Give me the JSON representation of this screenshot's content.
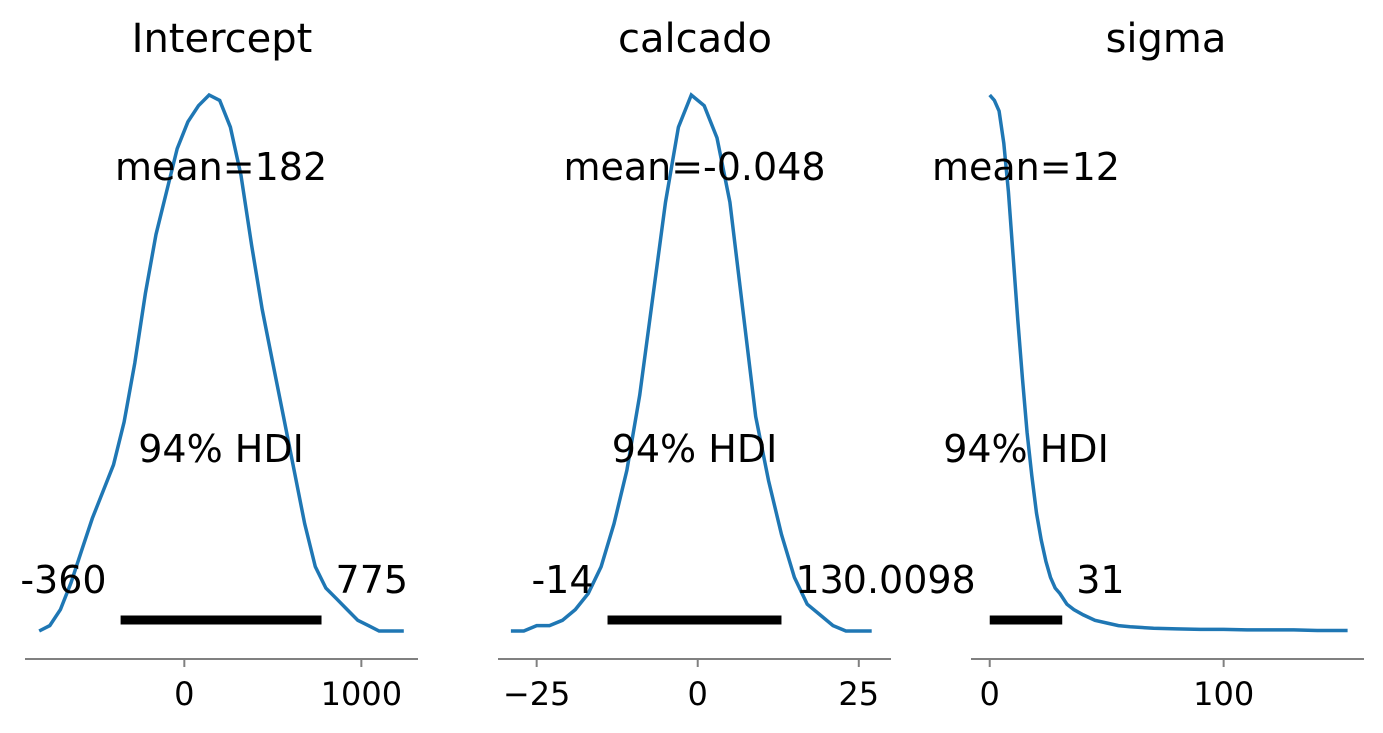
{
  "chart_data": [
    {
      "type": "area",
      "title": "Intercept",
      "mean_label": "mean=182",
      "hdi_label": "94% HDI",
      "hdi_low_label": "-360",
      "hdi_high_label": "775",
      "hdi": [
        -360,
        775
      ],
      "xlim": [
        -900,
        1320
      ],
      "xticks": [
        0,
        1000
      ],
      "xtick_labels": [
        "0",
        "1000"
      ],
      "line_color": "#1f77b4",
      "x": [
        -820,
        -760,
        -700,
        -640,
        -580,
        -520,
        -460,
        -400,
        -340,
        -280,
        -220,
        -160,
        -100,
        -40,
        20,
        80,
        140,
        200,
        260,
        320,
        380,
        440,
        500,
        560,
        620,
        680,
        740,
        800,
        860,
        920,
        980,
        1040,
        1100,
        1160,
        1240
      ],
      "density": [
        0.0,
        0.01,
        0.04,
        0.09,
        0.15,
        0.21,
        0.26,
        0.31,
        0.39,
        0.5,
        0.63,
        0.74,
        0.82,
        0.9,
        0.95,
        0.98,
        1.0,
        0.99,
        0.94,
        0.85,
        0.72,
        0.6,
        0.5,
        0.4,
        0.3,
        0.2,
        0.12,
        0.08,
        0.06,
        0.04,
        0.02,
        0.01,
        0.0,
        0.0,
        0.0
      ]
    },
    {
      "type": "area",
      "title": "calcado",
      "mean_label": "mean=-0.048",
      "hdi_label": "94% HDI",
      "hdi_low_label": "-14",
      "hdi_high_label": "13",
      "hdi": [
        -14,
        13
      ],
      "xlim": [
        -31,
        30
      ],
      "xticks": [
        -25,
        0,
        25
      ],
      "xtick_labels": [
        "−25",
        "0",
        "25"
      ],
      "line_color": "#1f77b4",
      "x": [
        -29,
        -27,
        -25,
        -23,
        -21,
        -19,
        -17,
        -15,
        -13,
        -11,
        -9,
        -7,
        -5,
        -3,
        -1,
        1,
        3,
        5,
        7,
        9,
        11,
        13,
        15,
        17,
        19,
        21,
        23,
        25,
        27
      ],
      "density": [
        0.0,
        0.0,
        0.01,
        0.01,
        0.02,
        0.04,
        0.07,
        0.12,
        0.2,
        0.3,
        0.44,
        0.62,
        0.8,
        0.94,
        1.0,
        0.98,
        0.92,
        0.8,
        0.6,
        0.4,
        0.28,
        0.18,
        0.1,
        0.05,
        0.03,
        0.01,
        0.0,
        0.0,
        0.0
      ]
    },
    {
      "type": "area",
      "title": "sigma",
      "mean_label": "mean=12",
      "hdi_label": "94% HDI",
      "hdi_low_label": "0.0098",
      "hdi_high_label": "31",
      "hdi": [
        0.0098,
        31
      ],
      "xlim": [
        -8,
        160
      ],
      "xticks": [
        0,
        100
      ],
      "xtick_labels": [
        "0",
        "100"
      ],
      "line_color": "#1f77b4",
      "x": [
        0,
        2,
        4,
        6,
        8,
        10,
        12,
        14,
        16,
        18,
        20,
        22,
        24,
        26,
        28,
        30,
        33,
        36,
        40,
        45,
        50,
        55,
        60,
        70,
        80,
        90,
        100,
        110,
        120,
        130,
        140,
        150,
        153
      ],
      "density": [
        1.0,
        0.99,
        0.97,
        0.91,
        0.82,
        0.7,
        0.58,
        0.47,
        0.37,
        0.29,
        0.22,
        0.17,
        0.13,
        0.1,
        0.08,
        0.07,
        0.05,
        0.04,
        0.03,
        0.02,
        0.015,
        0.01,
        0.008,
        0.005,
        0.004,
        0.003,
        0.003,
        0.002,
        0.002,
        0.002,
        0.001,
        0.001,
        0.001
      ]
    }
  ]
}
